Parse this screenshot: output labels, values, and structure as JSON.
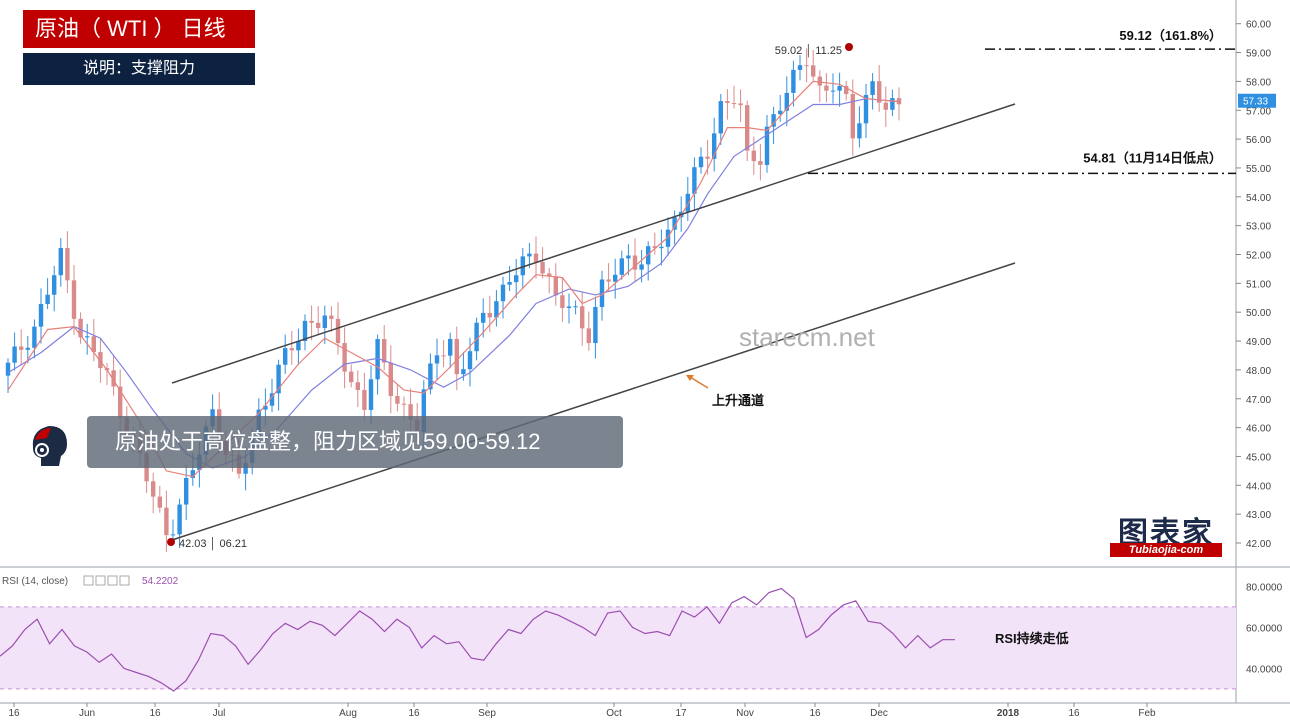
{
  "header": {
    "title": "原油（ WTI ） 日线",
    "subtitle": "说明：支撑阻力"
  },
  "banner": {
    "text": "原油处于高位盘整，阻力区域见59.00-59.12"
  },
  "watermark": "starecm.net",
  "brand": {
    "name": "图表家",
    "url": "Tubiaojia-com"
  },
  "annotations": {
    "high_label": "59.02 │ 11.25",
    "low_label": "42.03 │ 06.21",
    "level_1618": "59.12（161.8%）",
    "level_nov14": "54.81（11月14日低点）",
    "channel_label": "上升通道",
    "rsi_note": "RSI持续走低",
    "last_price": "57.33"
  },
  "rsi_header": {
    "label": "RSI (14, close)",
    "value": "54.2202"
  },
  "colors": {
    "up": "#2f8fe0",
    "down": "#d98b8b",
    "ema_fast": "#e8807a",
    "ema_slow": "#8080e0",
    "rsi_line": "#9b4fb0",
    "rsi_band": "#f3e3f8",
    "channel": "#444444",
    "title_bg": "#c00000"
  },
  "chart_data": [
    {
      "type": "candlestick",
      "title": "原油（ WTI ） 日线",
      "x_ticks": [
        "16",
        "Jun",
        "16",
        "Jul",
        "Aug",
        "16",
        "Sep",
        "Oct",
        "17",
        "Nov",
        "16",
        "Dec",
        "2018",
        "16",
        "Feb"
      ],
      "y_ticks": [
        "42.00",
        "43.00",
        "44.00",
        "45.00",
        "46.00",
        "47.00",
        "48.00",
        "49.00",
        "50.00",
        "51.00",
        "52.00",
        "53.00",
        "54.00",
        "55.00",
        "56.00",
        "57.00",
        "58.00",
        "59.00",
        "60.00"
      ],
      "ylim": [
        41.7,
        60.3
      ],
      "close_path": [
        [
          0,
          48.1
        ],
        [
          4,
          49.5
        ],
        [
          8,
          51.9
        ],
        [
          11,
          49.3
        ],
        [
          15,
          47.8
        ],
        [
          19,
          45.5
        ],
        [
          22,
          43.6
        ],
        [
          24,
          42.4
        ],
        [
          25,
          42.7
        ],
        [
          28,
          44.5
        ],
        [
          31,
          46.6
        ],
        [
          33,
          45.2
        ],
        [
          35,
          44.2
        ],
        [
          38,
          46.5
        ],
        [
          42,
          48.4
        ],
        [
          45,
          49.6
        ],
        [
          48,
          49.8
        ],
        [
          50,
          48.9
        ],
        [
          52,
          47.6
        ],
        [
          54,
          46.8
        ],
        [
          56,
          48.7
        ],
        [
          58,
          47.4
        ],
        [
          61,
          46.3
        ],
        [
          62,
          46.0
        ],
        [
          63,
          47.1
        ],
        [
          65,
          48.7
        ],
        [
          67,
          49.0
        ],
        [
          68,
          47.7
        ],
        [
          70,
          48.6
        ],
        [
          72,
          50.0
        ],
        [
          75,
          50.7
        ],
        [
          78,
          51.7
        ],
        [
          80,
          52.1
        ],
        [
          81,
          51.6
        ],
        [
          83,
          50.4
        ],
        [
          86,
          50.0
        ],
        [
          88,
          49.3
        ],
        [
          90,
          50.8
        ],
        [
          92,
          51.4
        ],
        [
          94,
          52.0
        ],
        [
          96,
          51.7
        ],
        [
          98,
          52.1
        ],
        [
          101,
          53.2
        ],
        [
          103,
          54.3
        ],
        [
          106,
          55.5
        ],
        [
          108,
          57.2
        ],
        [
          110,
          57.5
        ],
        [
          111,
          57.0
        ],
        [
          112,
          55.2
        ],
        [
          114,
          55.4
        ],
        [
          115,
          56.4
        ],
        [
          117,
          57.2
        ],
        [
          119,
          58.0
        ],
        [
          121,
          58.9
        ],
        [
          123,
          57.7
        ],
        [
          125,
          57.8
        ],
        [
          127,
          57.3
        ],
        [
          128,
          56.3
        ],
        [
          130,
          57.4
        ],
        [
          131,
          57.9
        ],
        [
          133,
          56.9
        ],
        [
          134,
          57.1
        ],
        [
          135,
          57.33
        ]
      ],
      "ema_fast_path": [
        [
          0,
          47.3
        ],
        [
          6,
          49.4
        ],
        [
          10,
          49.5
        ],
        [
          15,
          48.0
        ],
        [
          20,
          46.2
        ],
        [
          24,
          44.5
        ],
        [
          28,
          44.3
        ],
        [
          33,
          45.4
        ],
        [
          38,
          46.5
        ],
        [
          44,
          48.2
        ],
        [
          48,
          49.1
        ],
        [
          52,
          48.6
        ],
        [
          56,
          48.1
        ],
        [
          60,
          47.3
        ],
        [
          63,
          47.2
        ],
        [
          67,
          48.1
        ],
        [
          72,
          49.3
        ],
        [
          77,
          50.6
        ],
        [
          80,
          51.3
        ],
        [
          84,
          51.2
        ],
        [
          87,
          50.3
        ],
        [
          90,
          50.6
        ],
        [
          95,
          51.6
        ],
        [
          100,
          52.6
        ],
        [
          105,
          54.5
        ],
        [
          109,
          56.4
        ],
        [
          112,
          56.4
        ],
        [
          115,
          56.3
        ],
        [
          119,
          57.3
        ],
        [
          122,
          58.0
        ],
        [
          126,
          57.9
        ],
        [
          130,
          57.4
        ],
        [
          135,
          57.3
        ]
      ],
      "ema_slow_path": [
        [
          0,
          47.9
        ],
        [
          5,
          48.6
        ],
        [
          10,
          49.5
        ],
        [
          14,
          49.1
        ],
        [
          18,
          47.9
        ],
        [
          22,
          46.6
        ],
        [
          27,
          45.1
        ],
        [
          31,
          44.6
        ],
        [
          36,
          45.0
        ],
        [
          41,
          46.0
        ],
        [
          46,
          47.3
        ],
        [
          51,
          48.2
        ],
        [
          56,
          48.4
        ],
        [
          61,
          48.0
        ],
        [
          66,
          47.4
        ],
        [
          70,
          47.9
        ],
        [
          76,
          49.2
        ],
        [
          80,
          50.3
        ],
        [
          85,
          50.8
        ],
        [
          89,
          50.6
        ],
        [
          94,
          50.9
        ],
        [
          99,
          51.7
        ],
        [
          103,
          52.9
        ],
        [
          106,
          54.1
        ],
        [
          110,
          55.4
        ],
        [
          114,
          56.0
        ],
        [
          118,
          56.6
        ],
        [
          122,
          57.2
        ],
        [
          126,
          57.2
        ],
        [
          130,
          57.4
        ],
        [
          135,
          57.3
        ]
      ],
      "horizontal_levels": [
        {
          "value": 59.12,
          "label": "59.12（161.8%）"
        },
        {
          "value": 54.81,
          "label": "54.81（11月14日低点）"
        }
      ],
      "channel": {
        "upper": [
          [
            24,
            47.9
          ],
          [
            150,
            57.5
          ]
        ],
        "lower": [
          [
            24,
            42.2
          ],
          [
            150,
            51.8
          ]
        ]
      },
      "markers": [
        {
          "x": 120,
          "y": 59.02,
          "label": "59.02 │ 11.25"
        },
        {
          "x": 24,
          "y": 42.03,
          "label": "42.03 │ 06.21"
        }
      ]
    },
    {
      "type": "line",
      "title": "RSI (14, close)",
      "y_ticks": [
        "40.0000",
        "60.0000",
        "80.0000"
      ],
      "ylim": [
        28,
        82
      ],
      "band": [
        30,
        70
      ],
      "last_value": 54.2202,
      "series": [
        {
          "values": [
            46,
            51,
            59,
            64,
            52,
            59,
            51,
            48,
            43,
            47,
            40,
            38,
            36,
            33,
            29,
            34,
            44,
            57,
            56,
            51,
            42,
            49,
            57,
            62,
            59,
            63,
            61,
            56,
            62,
            68,
            64,
            58,
            64,
            60,
            50,
            56,
            52,
            53,
            45,
            44,
            52,
            59,
            57,
            64,
            68,
            66,
            63,
            60,
            56,
            67,
            68,
            60,
            57,
            58,
            56,
            68,
            65,
            70,
            62,
            72,
            75,
            71,
            77,
            79,
            74,
            55,
            59,
            66,
            71,
            73,
            63,
            62,
            57,
            50,
            56,
            50,
            54,
            54
          ]
        }
      ]
    }
  ]
}
